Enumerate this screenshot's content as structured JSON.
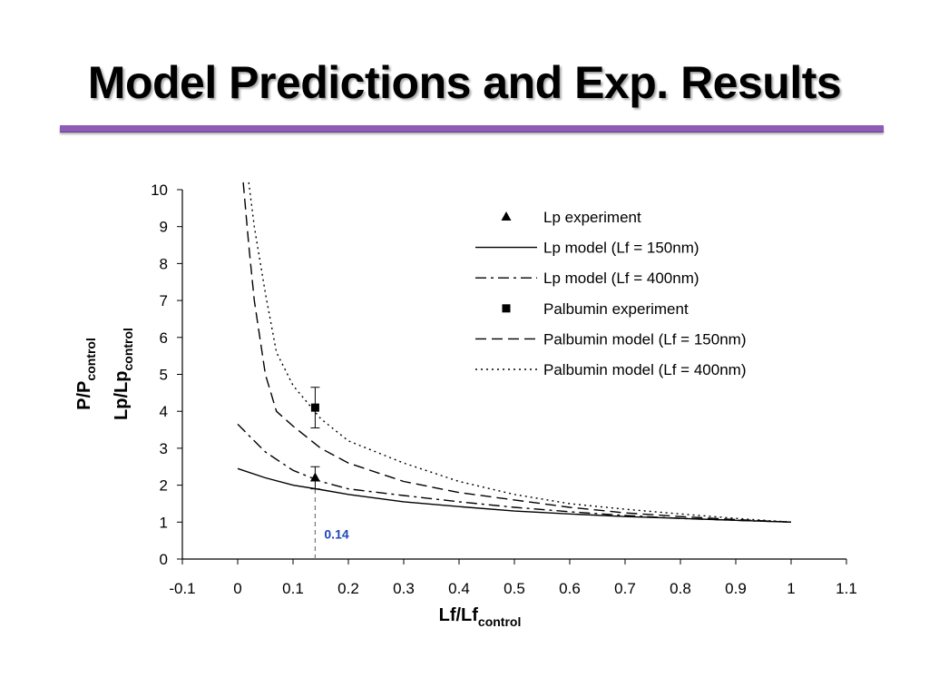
{
  "slide": {
    "title": "Model Predictions and Exp. Results",
    "rule_color": "#8e5bb5"
  },
  "chart_data": {
    "type": "line",
    "xlabel": {
      "main": "Lf/Lf",
      "sub": "control"
    },
    "ylabel": [
      {
        "main": "P/P",
        "sub": "control"
      },
      {
        "main": "Lp/Lp",
        "sub": "control"
      }
    ],
    "xlim": [
      -0.1,
      1.1
    ],
    "ylim": [
      0,
      10
    ],
    "xticks": [
      "-0.1",
      "0",
      "0.1",
      "0.2",
      "0.3",
      "0.4",
      "0.5",
      "0.6",
      "0.7",
      "0.8",
      "0.9",
      "1",
      "1.1"
    ],
    "yticks": [
      "0",
      "1",
      "2",
      "3",
      "4",
      "5",
      "6",
      "7",
      "8",
      "9",
      "10"
    ],
    "grid": false,
    "legend_position": "top-right",
    "annotation": {
      "text": "0.14",
      "x": 0.14
    },
    "series": [
      {
        "name": "Lp experiment",
        "kind": "marker",
        "marker": "triangle",
        "points": [
          {
            "x": 0.14,
            "y": 2.2,
            "err_low": 1.9,
            "err_high": 2.5
          }
        ]
      },
      {
        "name": "Lp model (Lf = 150nm)",
        "kind": "line",
        "dash": "solid",
        "x": [
          0,
          0.05,
          0.1,
          0.15,
          0.2,
          0.3,
          0.4,
          0.5,
          0.6,
          0.7,
          0.8,
          0.9,
          1.0
        ],
        "y": [
          2.45,
          2.2,
          2.0,
          1.88,
          1.75,
          1.55,
          1.42,
          1.3,
          1.22,
          1.15,
          1.1,
          1.05,
          1.0
        ]
      },
      {
        "name": "Lp model (Lf = 400nm)",
        "kind": "line",
        "dash": "dashdot",
        "x": [
          0,
          0.02,
          0.05,
          0.1,
          0.15,
          0.2,
          0.3,
          0.4,
          0.5,
          0.6,
          0.7,
          0.8,
          0.9,
          1.0
        ],
        "y": [
          3.65,
          3.35,
          2.9,
          2.4,
          2.1,
          1.9,
          1.72,
          1.55,
          1.4,
          1.28,
          1.18,
          1.1,
          1.05,
          1.0
        ]
      },
      {
        "name": "Palbumin experiment",
        "kind": "marker",
        "marker": "square",
        "points": [
          {
            "x": 0.14,
            "y": 4.1,
            "err_low": 3.55,
            "err_high": 4.65
          }
        ]
      },
      {
        "name": "Palbumin model (Lf = 150nm)",
        "kind": "line",
        "dash": "dashed",
        "x": [
          0.01,
          0.02,
          0.03,
          0.05,
          0.07,
          0.1,
          0.15,
          0.2,
          0.3,
          0.4,
          0.5,
          0.6,
          0.7,
          0.8,
          0.9,
          1.0
        ],
        "y": [
          10.2,
          8.5,
          7.0,
          5.0,
          4.0,
          3.6,
          3.0,
          2.6,
          2.1,
          1.8,
          1.6,
          1.4,
          1.25,
          1.15,
          1.07,
          1.0
        ]
      },
      {
        "name": "Palbumin model (Lf = 400nm)",
        "kind": "line",
        "dash": "dotted",
        "x": [
          0.02,
          0.03,
          0.05,
          0.07,
          0.1,
          0.15,
          0.2,
          0.3,
          0.4,
          0.5,
          0.6,
          0.7,
          0.8,
          0.9,
          1.0
        ],
        "y": [
          10.2,
          9.0,
          7.2,
          5.6,
          4.7,
          3.8,
          3.2,
          2.6,
          2.1,
          1.75,
          1.5,
          1.35,
          1.22,
          1.1,
          1.0
        ]
      }
    ]
  }
}
